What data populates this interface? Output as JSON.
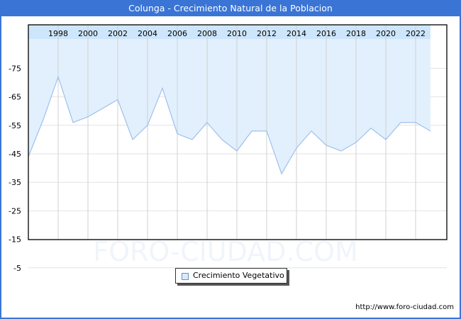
{
  "title": "Colunga - Crecimiento Natural de la Poblacion",
  "watermark": "FORO-CIUDAD.COM",
  "footer_url": "http://www.foro-ciudad.com",
  "legend": {
    "label": "Crecimiento Vegetativo"
  },
  "colors": {
    "header": "#3a75d6",
    "fill": "#e2f0fd",
    "fill_band": "#cde6fc",
    "line": "#9ec0ec",
    "grid": "#d0d0d0"
  },
  "chart_data": {
    "type": "area",
    "title": "Colunga - Crecimiento Natural de la Poblacion",
    "xlabel": "",
    "ylabel": "",
    "x": [
      1996,
      1997,
      1998,
      1999,
      2000,
      2001,
      2002,
      2003,
      2004,
      2005,
      2006,
      2007,
      2008,
      2009,
      2010,
      2011,
      2012,
      2013,
      2014,
      2015,
      2016,
      2017,
      2018,
      2019,
      2020,
      2021,
      2022,
      2023
    ],
    "series": [
      {
        "name": "Crecimiento Vegetativo",
        "values": [
          -44,
          -57,
          -72,
          -56,
          -58,
          -61,
          -64,
          -50,
          -55,
          -68,
          -52,
          -50,
          -56,
          -50,
          -46,
          -53,
          -53,
          -38,
          -47,
          -53,
          -48,
          -46,
          -49,
          -54,
          -50,
          -56,
          -56,
          -53
        ]
      }
    ],
    "x_tick_labels": [
      "1998",
      "2000",
      "2002",
      "2004",
      "2006",
      "2008",
      "2010",
      "2012",
      "2014",
      "2016",
      "2018",
      "2020",
      "2022"
    ],
    "y_tick_labels": [
      "-5",
      "-15",
      "-25",
      "-35",
      "-45",
      "-55",
      "-65",
      "-75"
    ],
    "ylim": [
      -75,
      0
    ],
    "grid": true,
    "legend_position": "bottom-center",
    "x_axis_position": "top"
  }
}
